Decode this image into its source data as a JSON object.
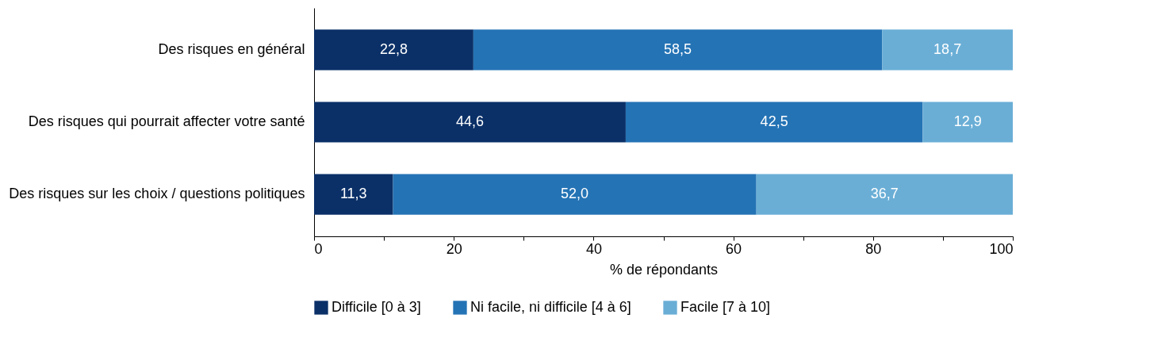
{
  "chart_data": {
    "type": "bar",
    "orientation": "horizontal",
    "stacked": true,
    "xlabel": "% de répondants",
    "categories": [
      "Des risques en général",
      "Des risques qui pourrait affecter votre santé",
      "Des risques sur les choix / questions politiques"
    ],
    "series": [
      {
        "name": "Difficile [0 à 3]",
        "color": "#0b3068",
        "values": [
          22.8,
          44.6,
          11.3
        ],
        "value_labels": [
          "22,8",
          "44,6",
          "11,3"
        ]
      },
      {
        "name": "Ni facile, ni difficile [4 à 6]",
        "color": "#2473b5",
        "values": [
          58.5,
          42.5,
          52.0
        ],
        "value_labels": [
          "58,5",
          "42,5",
          "52,0"
        ]
      },
      {
        "name": "Facile [7 à 10]",
        "color": "#6aaed6",
        "values": [
          18.7,
          12.9,
          36.7
        ],
        "value_labels": [
          "18,7",
          "12,9",
          "36,7"
        ]
      }
    ],
    "xlim": [
      0,
      100
    ],
    "xticks": [
      0,
      {
        "value": 10,
        "label": null
      },
      20,
      {
        "value": 30,
        "label": null
      },
      40,
      {
        "value": 50,
        "label": null
      },
      60,
      {
        "value": 70,
        "label": null
      },
      80,
      {
        "value": 90,
        "label": null
      },
      100
    ],
    "grid": false,
    "legend": "bottom"
  }
}
